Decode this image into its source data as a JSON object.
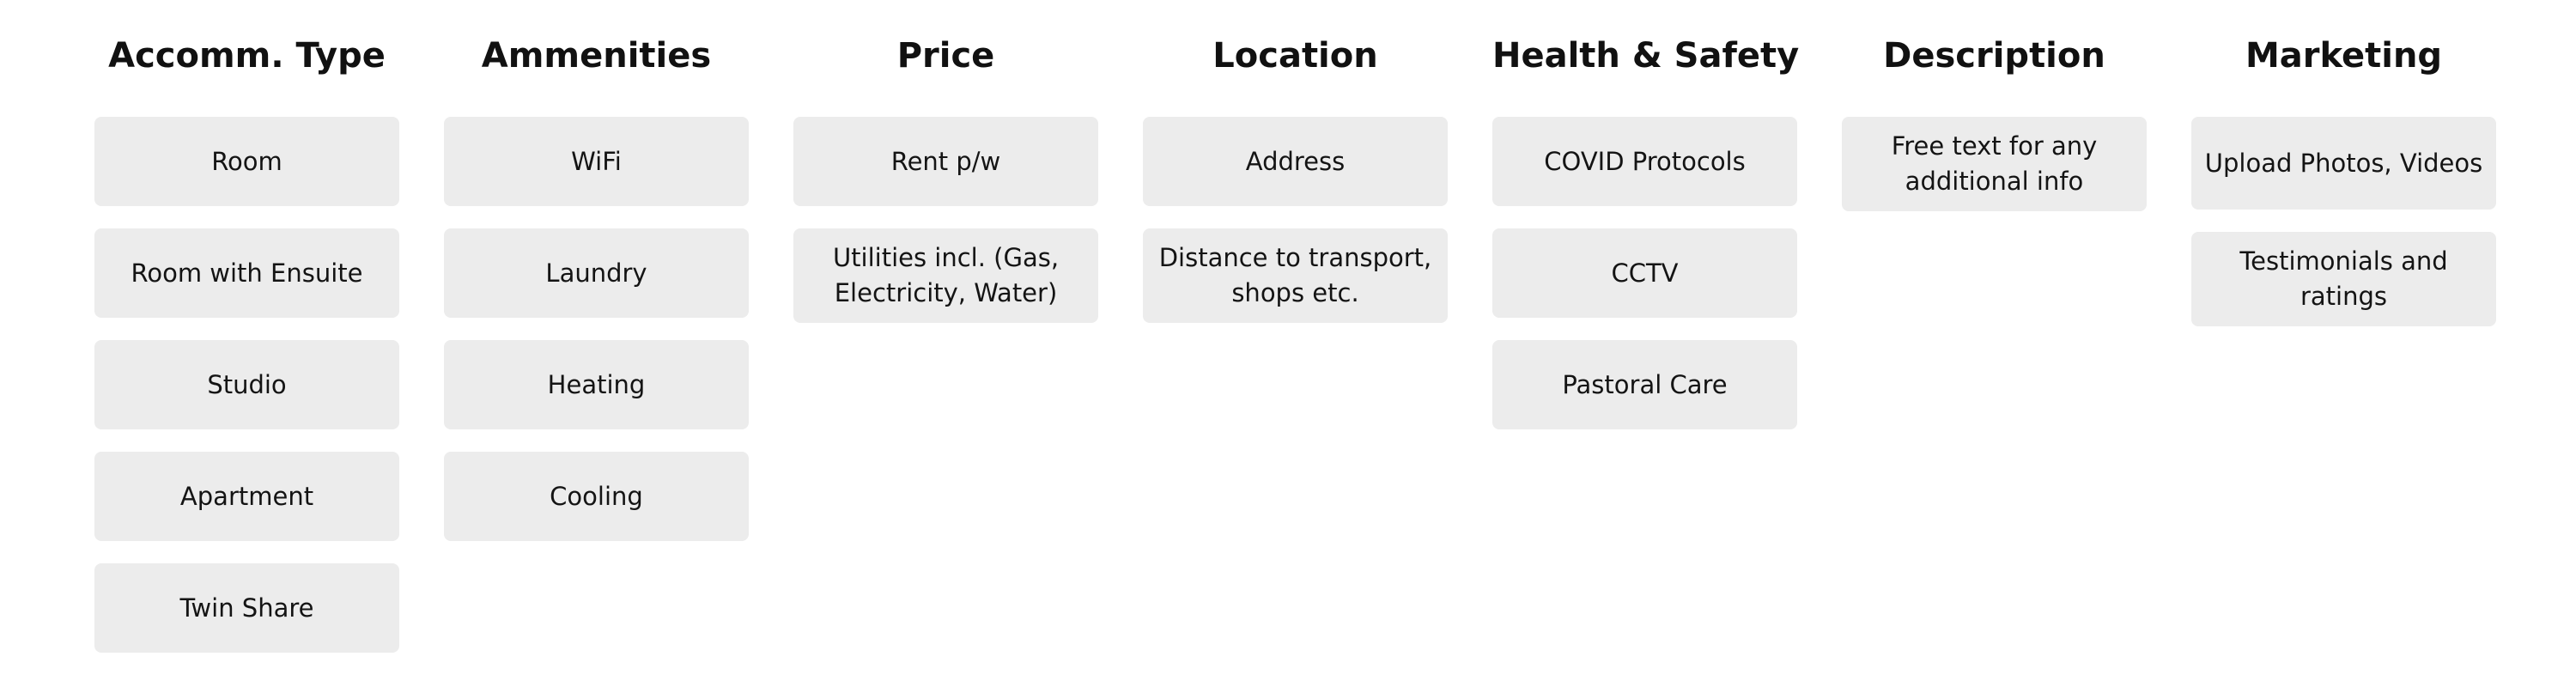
{
  "columns": [
    {
      "title": "Accomm. Type",
      "cards": [
        "Room",
        "Room with Ensuite",
        "Studio",
        "Apartment",
        "Twin Share"
      ]
    },
    {
      "title": "Ammenities",
      "cards": [
        "WiFi",
        "Laundry",
        "Heating",
        "Cooling"
      ]
    },
    {
      "title": "Price",
      "cards": [
        "Rent p/w",
        "Utilities incl. (Gas, Electricity, Water)"
      ]
    },
    {
      "title": "Location",
      "cards": [
        "Address",
        "Distance to transport, shops etc."
      ]
    },
    {
      "title": "Health & Safety",
      "cards": [
        "COVID Protocols",
        "CCTV",
        "Pastoral Care"
      ]
    },
    {
      "title": "Description",
      "cards": [
        "Free text for any additional info"
      ]
    },
    {
      "title": "Marketing",
      "cards": [
        "Upload Photos, Videos",
        "Testimonials and ratings"
      ]
    }
  ]
}
